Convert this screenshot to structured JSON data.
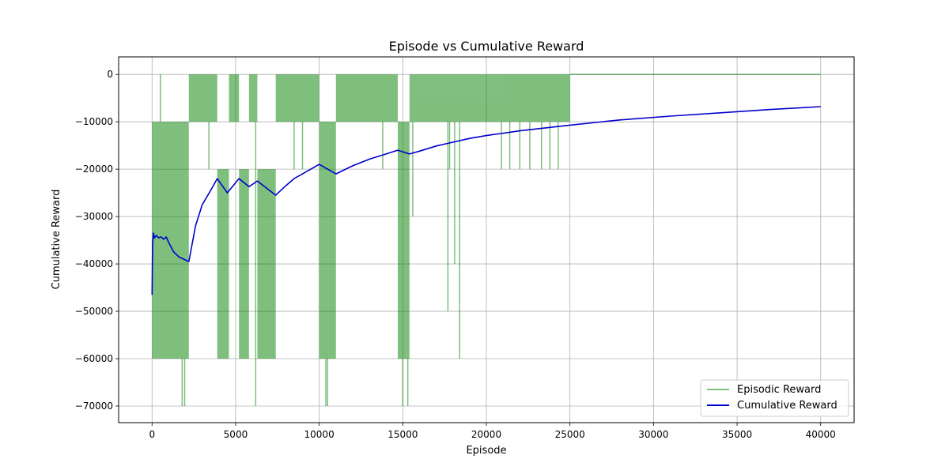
{
  "chart_data": {
    "type": "line",
    "title": "Episode vs Cumulative Reward",
    "xlabel": "Episode",
    "ylabel": "Cumulative Reward",
    "xlim": [
      -2000,
      42000
    ],
    "ylim": [
      -73500,
      3700
    ],
    "grid": true,
    "legend_position": "bottom-right",
    "x_ticks": [
      0,
      5000,
      10000,
      15000,
      20000,
      25000,
      30000,
      35000,
      40000
    ],
    "x_tick_labels": [
      "0",
      "5000",
      "10000",
      "15000",
      "20000",
      "25000",
      "30000",
      "35000",
      "40000"
    ],
    "y_ticks": [
      0,
      -10000,
      -20000,
      -30000,
      -40000,
      -50000,
      -60000,
      -70000
    ],
    "y_tick_labels": [
      "0",
      "−10000",
      "−20000",
      "−30000",
      "−40000",
      "−50000",
      "−60000",
      "−70000"
    ],
    "series": [
      {
        "name": "Episodic Reward",
        "color": "#008000",
        "opacity": 0.5,
        "style": "oscillating-band",
        "bands": [
          {
            "x_start": 0,
            "x_end": 2200,
            "y_min": -60000,
            "y_max": -10000
          },
          {
            "x_start": 2200,
            "x_end": 3900,
            "y_min": -10000,
            "y_max": 0
          },
          {
            "x_start": 3900,
            "x_end": 4600,
            "y_min": -60000,
            "y_max": -20000
          },
          {
            "x_start": 4600,
            "x_end": 5200,
            "y_min": -10000,
            "y_max": 0
          },
          {
            "x_start": 5200,
            "x_end": 5800,
            "y_min": -60000,
            "y_max": -20000
          },
          {
            "x_start": 5800,
            "x_end": 6300,
            "y_min": -10000,
            "y_max": 0
          },
          {
            "x_start": 6300,
            "x_end": 7400,
            "y_min": -60000,
            "y_max": -20000
          },
          {
            "x_start": 7400,
            "x_end": 10000,
            "y_min": -10000,
            "y_max": 0
          },
          {
            "x_start": 10000,
            "x_end": 11000,
            "y_min": -60000,
            "y_max": -10000
          },
          {
            "x_start": 11000,
            "x_end": 14700,
            "y_min": -10000,
            "y_max": 0
          },
          {
            "x_start": 14700,
            "x_end": 15400,
            "y_min": -60000,
            "y_max": -10000
          },
          {
            "x_start": 15400,
            "x_end": 25000,
            "y_min": -10000,
            "y_max": 0
          },
          {
            "x_start": 25000,
            "x_end": 40000,
            "y_min": 0,
            "y_max": 0
          }
        ],
        "spikes": [
          {
            "x": 100,
            "y": -60000
          },
          {
            "x": 500,
            "y": 0
          },
          {
            "x": 900,
            "y": -60000
          },
          {
            "x": 1800,
            "y": -70000
          },
          {
            "x": 1950,
            "y": -70000
          },
          {
            "x": 3400,
            "y": -20000
          },
          {
            "x": 6200,
            "y": -70000
          },
          {
            "x": 8500,
            "y": -20000
          },
          {
            "x": 9000,
            "y": -20000
          },
          {
            "x": 10400,
            "y": -70000
          },
          {
            "x": 10500,
            "y": -70000
          },
          {
            "x": 13800,
            "y": -20000
          },
          {
            "x": 15000,
            "y": -70000
          },
          {
            "x": 15300,
            "y": -70000
          },
          {
            "x": 15600,
            "y": -30000
          },
          {
            "x": 17700,
            "y": -50000
          },
          {
            "x": 17800,
            "y": -20000
          },
          {
            "x": 18100,
            "y": -40000
          },
          {
            "x": 18400,
            "y": -60000
          },
          {
            "x": 20900,
            "y": -20000
          },
          {
            "x": 21400,
            "y": -20000
          },
          {
            "x": 22000,
            "y": -20000
          },
          {
            "x": 22600,
            "y": -20000
          },
          {
            "x": 23300,
            "y": -20000
          },
          {
            "x": 23800,
            "y": -20000
          },
          {
            "x": 24300,
            "y": -20000
          }
        ]
      },
      {
        "name": "Cumulative Reward",
        "color": "#0000cd",
        "x": [
          0,
          30,
          80,
          150,
          250,
          400,
          550,
          700,
          850,
          1000,
          1300,
          1600,
          2200,
          2600,
          3000,
          3500,
          3900,
          4500,
          5200,
          5800,
          6300,
          7400,
          8000,
          8500,
          9000,
          9500,
          10000,
          11000,
          12000,
          13000,
          14000,
          14700,
          15400,
          16000,
          17000,
          18000,
          19000,
          20000,
          22000,
          25000,
          28000,
          31000,
          34000,
          37000,
          40000
        ],
        "y": [
          -46500,
          -36000,
          -33500,
          -34500,
          -34000,
          -34500,
          -34300,
          -34800,
          -34300,
          -35500,
          -37500,
          -38500,
          -39500,
          -32000,
          -27500,
          -24500,
          -22000,
          -25000,
          -22000,
          -23700,
          -22500,
          -25500,
          -23500,
          -22000,
          -21000,
          -20000,
          -19000,
          -21000,
          -19300,
          -17900,
          -16800,
          -16000,
          -16800,
          -16200,
          -15100,
          -14300,
          -13500,
          -12900,
          -11900,
          -10700,
          -9600,
          -8800,
          -8100,
          -7400,
          -6800
        ]
      }
    ]
  }
}
